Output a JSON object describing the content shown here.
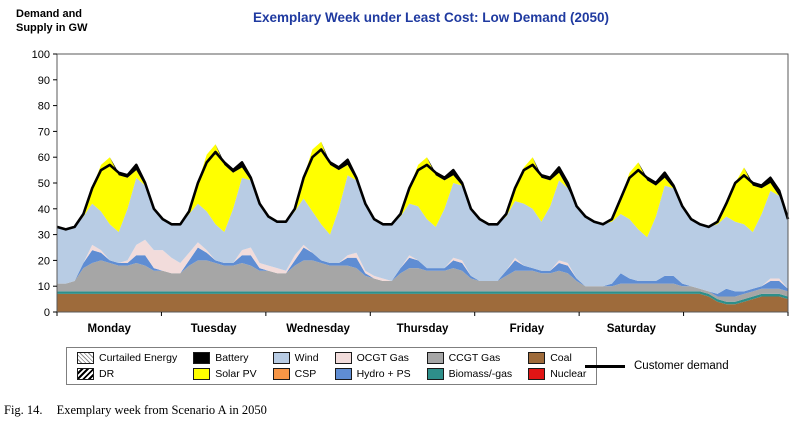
{
  "header": {
    "title": "Exemplary Week under Least Cost: Low Demand (2050)",
    "y_axis_title_line1": "Demand and",
    "y_axis_title_line2": "Supply in GW"
  },
  "legend": {
    "items": [
      {
        "label": "Curtailed Energy",
        "type": "hatch-light",
        "color": "#ffffff"
      },
      {
        "label": "Battery",
        "type": "solid",
        "color": "#000000"
      },
      {
        "label": "Wind",
        "type": "solid",
        "color": "#b8cce4"
      },
      {
        "label": "OCGT Gas",
        "type": "solid",
        "color": "#f2dcdb"
      },
      {
        "label": "CCGT Gas",
        "type": "solid",
        "color": "#a6a6a6"
      },
      {
        "label": "Coal",
        "type": "solid",
        "color": "#9e6b3b"
      },
      {
        "label": "DR",
        "type": "hatch-dark",
        "color": "#ffffff"
      },
      {
        "label": "Solar PV",
        "type": "solid",
        "color": "#ffff00"
      },
      {
        "label": "CSP",
        "type": "solid",
        "color": "#f79646"
      },
      {
        "label": "Hydro + PS",
        "type": "solid",
        "color": "#5f8dd3"
      },
      {
        "label": "Biomass/-gas",
        "type": "solid",
        "color": "#2e8f8a"
      },
      {
        "label": "Nuclear",
        "type": "solid",
        "color": "#e01515"
      }
    ],
    "demand_label": "Customer demand"
  },
  "caption": {
    "fig_label": "Fig. 14.",
    "text": "Exemplary week from Scenario A in 2050"
  },
  "chart_data": {
    "type": "area",
    "stacked": true,
    "title": "Exemplary Week under Least Cost: Low Demand (2050)",
    "ylabel": "Demand and Supply in GW",
    "ylim": [
      0,
      100
    ],
    "ytick_step": 10,
    "categories": [
      "Monday",
      "Tuesday",
      "Wednesday",
      "Thursday",
      "Friday",
      "Saturday",
      "Sunday"
    ],
    "points_per_day": 12,
    "x_step_hours": 2,
    "grid": false,
    "legend_position": "bottom",
    "series": [
      {
        "name": "Coal",
        "color": "#9e6b3b",
        "values": [
          7,
          7,
          7,
          7,
          7,
          7,
          7,
          7,
          7,
          7,
          7,
          7,
          7,
          7,
          7,
          7,
          7,
          7,
          7,
          7,
          7,
          7,
          7,
          7,
          7,
          7,
          7,
          7,
          7,
          7,
          7,
          7,
          7,
          7,
          7,
          7,
          7,
          7,
          7,
          7,
          7,
          7,
          7,
          7,
          7,
          7,
          7,
          7,
          7,
          7,
          7,
          7,
          7,
          7,
          7,
          7,
          7,
          7,
          7,
          7,
          7,
          7,
          7,
          7,
          7,
          7,
          7,
          7,
          7,
          7,
          7,
          7,
          7,
          7,
          6,
          4,
          3,
          3,
          4,
          5,
          6,
          6,
          6,
          5
        ]
      },
      {
        "name": "Biomass/-gas",
        "color": "#2e8f8a",
        "values": [
          1,
          1,
          1,
          1,
          1,
          1,
          1,
          1,
          1,
          1,
          1,
          1,
          1,
          1,
          1,
          1,
          1,
          1,
          1,
          1,
          1,
          1,
          1,
          1,
          1,
          1,
          1,
          1,
          1,
          1,
          1,
          1,
          1,
          1,
          1,
          1,
          1,
          1,
          1,
          1,
          1,
          1,
          1,
          1,
          1,
          1,
          1,
          1,
          1,
          1,
          1,
          1,
          1,
          1,
          1,
          1,
          1,
          1,
          1,
          1,
          1,
          1,
          1,
          1,
          1,
          1,
          1,
          1,
          1,
          1,
          1,
          1,
          1,
          1,
          1,
          1,
          1,
          1,
          1,
          1,
          1,
          1,
          1,
          1
        ]
      },
      {
        "name": "CCGT Gas",
        "color": "#a6a6a6",
        "values": [
          3,
          3,
          4,
          9,
          11,
          12,
          11,
          10,
          10,
          11,
          10,
          8,
          8,
          7,
          7,
          10,
          12,
          12,
          11,
          10,
          10,
          11,
          10,
          8,
          8,
          7,
          7,
          10,
          12,
          12,
          11,
          10,
          10,
          10,
          9,
          6,
          5,
          4,
          4,
          7,
          9,
          9,
          8,
          8,
          8,
          9,
          8,
          5,
          4,
          4,
          4,
          6,
          8,
          8,
          8,
          7,
          7,
          8,
          7,
          4,
          2,
          2,
          2,
          2,
          3,
          3,
          3,
          3,
          3,
          3,
          3,
          2,
          2,
          1,
          1,
          1,
          2,
          2,
          2,
          2,
          2,
          2,
          2,
          2
        ]
      },
      {
        "name": "Hydro + PS",
        "color": "#5f8dd3",
        "values": [
          0,
          0,
          0,
          2,
          5,
          3,
          1,
          1,
          1,
          3,
          4,
          1,
          0,
          0,
          0,
          2,
          5,
          3,
          1,
          1,
          1,
          3,
          4,
          1,
          0,
          0,
          0,
          2,
          5,
          3,
          1,
          1,
          1,
          3,
          4,
          1,
          0,
          0,
          0,
          2,
          4,
          3,
          1,
          1,
          1,
          3,
          3,
          1,
          0,
          0,
          0,
          2,
          4,
          2,
          1,
          1,
          1,
          3,
          3,
          1,
          0,
          0,
          0,
          1,
          4,
          2,
          1,
          1,
          1,
          3,
          3,
          1,
          0,
          0,
          0,
          1,
          3,
          2,
          1,
          1,
          1,
          3,
          3,
          1
        ]
      },
      {
        "name": "OCGT Gas",
        "color": "#f2dcdb",
        "values": [
          0,
          0,
          0,
          0,
          2,
          1,
          0,
          0,
          1,
          4,
          6,
          7,
          8,
          6,
          4,
          3,
          2,
          1,
          0,
          0,
          0,
          2,
          3,
          2,
          2,
          2,
          1,
          2,
          1,
          0,
          0,
          0,
          0,
          1,
          2,
          1,
          1,
          1,
          0,
          0,
          1,
          0,
          0,
          0,
          0,
          1,
          1,
          0,
          0,
          0,
          0,
          0,
          1,
          0,
          0,
          0,
          0,
          1,
          1,
          0,
          0,
          0,
          0,
          0,
          0,
          0,
          0,
          0,
          0,
          0,
          0,
          0,
          0,
          0,
          0,
          0,
          0,
          0,
          0,
          0,
          0,
          1,
          1,
          0
        ]
      },
      {
        "name": "Wind",
        "color": "#b8cce4",
        "values": [
          22,
          21,
          21,
          18,
          16,
          15,
          14,
          12,
          20,
          26,
          21,
          16,
          12,
          13,
          15,
          15,
          15,
          15,
          14,
          12,
          21,
          28,
          26,
          23,
          19,
          18,
          19,
          17,
          18,
          16,
          14,
          11,
          21,
          31,
          28,
          26,
          22,
          21,
          22,
          20,
          20,
          21,
          19,
          16,
          23,
          29,
          29,
          26,
          24,
          22,
          22,
          21,
          22,
          24,
          23,
          19,
          25,
          31,
          29,
          28,
          27,
          25,
          24,
          24,
          23,
          23,
          20,
          17,
          25,
          35,
          34,
          30,
          26,
          25,
          25,
          27,
          28,
          27,
          26,
          22,
          28,
          34,
          32,
          27
        ]
      },
      {
        "name": "Solar PV",
        "color": "#ffff00",
        "values": [
          0,
          0,
          0,
          1,
          6,
          18,
          26,
          22,
          12,
          3,
          0,
          0,
          0,
          0,
          0,
          1,
          8,
          22,
          31,
          26,
          14,
          4,
          0,
          0,
          0,
          0,
          0,
          1,
          8,
          24,
          32,
          27,
          15,
          4,
          0,
          0,
          0,
          0,
          0,
          1,
          6,
          16,
          24,
          20,
          11,
          3,
          0,
          0,
          0,
          0,
          0,
          1,
          5,
          14,
          20,
          17,
          10,
          3,
          0,
          0,
          0,
          0,
          0,
          1,
          6,
          18,
          26,
          22,
          12,
          3,
          0,
          0,
          0,
          0,
          0,
          1,
          5,
          15,
          22,
          18,
          10,
          3,
          0,
          0
        ]
      },
      {
        "name": "Battery",
        "color": "#000000",
        "values": [
          0,
          0,
          0,
          0,
          0,
          0,
          0,
          1,
          1,
          2,
          1,
          0,
          0,
          0,
          0,
          0,
          0,
          0,
          0,
          1,
          1,
          2,
          1,
          0,
          0,
          0,
          0,
          0,
          0,
          0,
          0,
          1,
          1,
          2,
          1,
          0,
          0,
          0,
          0,
          0,
          0,
          0,
          0,
          1,
          1,
          2,
          1,
          0,
          0,
          0,
          0,
          0,
          0,
          0,
          0,
          1,
          1,
          2,
          1,
          0,
          0,
          0,
          0,
          0,
          0,
          0,
          0,
          1,
          1,
          2,
          1,
          0,
          0,
          0,
          0,
          0,
          0,
          0,
          0,
          1,
          1,
          2,
          1,
          0
        ]
      }
    ],
    "demand_line": {
      "name": "Customer demand",
      "color": "#000000",
      "values": [
        33,
        32,
        33,
        38,
        48,
        55,
        57,
        54,
        53,
        57,
        50,
        40,
        36,
        34,
        34,
        39,
        50,
        58,
        62,
        58,
        55,
        58,
        52,
        42,
        37,
        35,
        35,
        40,
        52,
        60,
        63,
        58,
        56,
        59,
        52,
        42,
        36,
        34,
        34,
        38,
        48,
        55,
        57,
        54,
        52,
        55,
        50,
        40,
        36,
        34,
        34,
        38,
        48,
        55,
        57,
        53,
        52,
        56,
        50,
        41,
        37,
        35,
        34,
        36,
        44,
        52,
        55,
        52,
        50,
        54,
        49,
        41,
        36,
        34,
        33,
        35,
        42,
        50,
        53,
        50,
        49,
        52,
        47,
        36
      ]
    }
  }
}
